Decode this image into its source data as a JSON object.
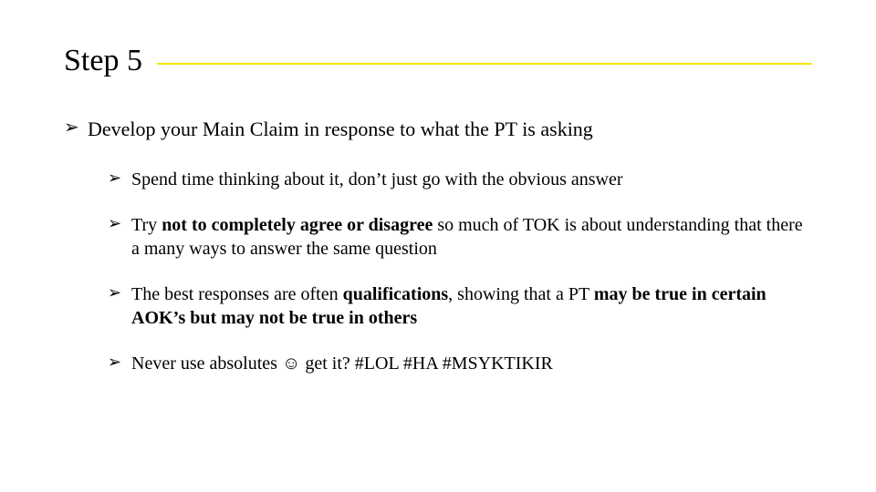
{
  "slide": {
    "title": "Step 5",
    "rule_color": "#f5e400",
    "title_fontsize": 34,
    "body_fontsize": 22,
    "sub_fontsize": 20,
    "text_color": "#000000",
    "background_color": "#ffffff",
    "font_family": "Times New Roman",
    "main": {
      "text": "Develop your Main Claim in response to what the PT is asking"
    },
    "sub": {
      "s1": {
        "text": "Spend time thinking about it, don’t just go with the obvious answer"
      },
      "s2": {
        "pre": "Try ",
        "bold": "not to completely agree or disagree",
        "post": " so much of TOK is about understanding that there a many ways to answer the same question"
      },
      "s3": {
        "pre": "The  best responses are often ",
        "bold1": "qualifications",
        "mid": ", showing that a PT ",
        "bold2": "may be true in certain AOK’s but may not be true in others"
      },
      "s4": {
        "pre": "Never use absolutes ",
        "emoji": "☺",
        "post": " get it?  #LOL #HA #MSYKTIKIR"
      }
    }
  }
}
